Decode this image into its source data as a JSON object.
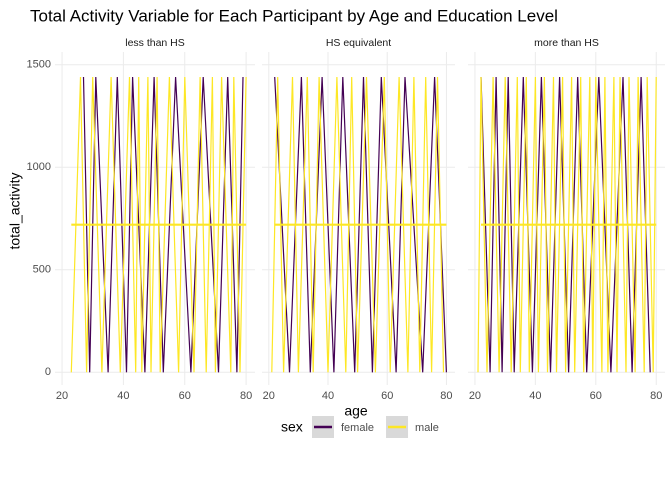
{
  "chart_data": {
    "type": "line",
    "title": "Total Activity Variable for Each Participant by Age and Education Level",
    "x_label": "age",
    "y_label": "total_activity",
    "legend_title": "sex",
    "legend_position": "bottom",
    "xlim": [
      17.7,
      82.9
    ],
    "ylim": [
      -62,
      1562
    ],
    "xticks": [
      20,
      40,
      60,
      80
    ],
    "yticks": [
      0,
      500,
      1000,
      1500
    ],
    "grid": true,
    "facets": [
      {
        "title": "less than HS",
        "series": [
          {
            "name": "female",
            "color": "#440154",
            "x": [
              27,
              29,
              31,
              35,
              38,
              41,
              43,
              47,
              50,
              53,
              57,
              62,
              66,
              71,
              74,
              77,
              79
            ],
            "values": [
              1440,
              0,
              1440,
              0,
              1440,
              0,
              1440,
              0,
              1440,
              0,
              1440,
              0,
              1440,
              0,
              1440,
              0,
              1440
            ]
          },
          {
            "name": "male",
            "color": "#FDE725",
            "x": [
              23,
              26,
              28,
              30,
              33,
              36,
              39,
              42,
              44,
              45,
              46,
              48,
              49,
              51,
              52,
              55,
              58,
              60,
              63,
              65,
              67,
              69,
              70,
              72,
              75,
              76,
              78,
              80
            ],
            "values": [
              0,
              1440,
              0,
              1440,
              0,
              1440,
              0,
              1440,
              0,
              1440,
              0,
              1440,
              0,
              1440,
              0,
              1440,
              0,
              1440,
              0,
              1440,
              0,
              1440,
              0,
              1440,
              0,
              1440,
              0,
              1440
            ]
          }
        ],
        "trend": {
          "color": "#FDE725",
          "x": [
            23,
            80
          ],
          "values": [
            720,
            720
          ]
        }
      },
      {
        "title": "HS equivalent",
        "series": [
          {
            "name": "female",
            "color": "#440154",
            "x": [
              22,
              27,
              31,
              34,
              38,
              42,
              45,
              49,
              52,
              55,
              58,
              63,
              66,
              72,
              76,
              80
            ],
            "values": [
              1440,
              0,
              1440,
              0,
              1440,
              0,
              1440,
              0,
              1440,
              0,
              1440,
              0,
              1440,
              0,
              1440,
              0
            ]
          },
          {
            "name": "male",
            "color": "#FDE725",
            "x": [
              21,
              23,
              25,
              28,
              30,
              33,
              35,
              37,
              40,
              43,
              46,
              48,
              50,
              53,
              56,
              59,
              61,
              64,
              67,
              69,
              71,
              73,
              75,
              77,
              79
            ],
            "values": [
              0,
              1440,
              0,
              1440,
              0,
              1440,
              0,
              1440,
              0,
              1440,
              0,
              1440,
              0,
              1440,
              0,
              1440,
              0,
              1440,
              0,
              1440,
              0,
              1440,
              0,
              1440,
              0
            ]
          }
        ],
        "trend": {
          "color": "#FDE725",
          "x": [
            22,
            80
          ],
          "values": [
            720,
            720
          ]
        }
      },
      {
        "title": "more than HS",
        "series": [
          {
            "name": "female",
            "color": "#440154",
            "x": [
              22,
              25,
              27,
              29,
              31,
              33,
              36,
              39,
              42,
              45,
              48,
              51,
              54,
              57,
              61,
              65,
              69,
              72,
              75,
              78
            ],
            "values": [
              1440,
              0,
              1440,
              0,
              1440,
              0,
              1440,
              0,
              1440,
              0,
              1440,
              0,
              1440,
              0,
              1440,
              0,
              1440,
              0,
              1440,
              0
            ]
          },
          {
            "name": "male",
            "color": "#FDE725",
            "x": [
              21,
              22,
              24,
              26,
              28,
              30,
              32,
              34,
              35,
              37,
              38,
              40,
              41,
              43,
              44,
              46,
              47,
              49,
              50,
              52,
              53,
              55,
              56,
              58,
              59,
              60,
              62,
              63,
              64,
              66,
              67,
              68,
              70,
              71,
              73,
              74,
              76,
              77,
              79,
              80
            ],
            "values": [
              0,
              1440,
              0,
              1440,
              0,
              1440,
              0,
              1440,
              0,
              1440,
              0,
              1440,
              0,
              1440,
              0,
              1440,
              0,
              1440,
              0,
              1440,
              0,
              1440,
              0,
              1440,
              0,
              1440,
              0,
              1440,
              0,
              1440,
              0,
              1440,
              0,
              1440,
              0,
              1440,
              0,
              1440,
              0,
              1440
            ]
          }
        ],
        "trend": {
          "color": "#FDE725",
          "x": [
            22,
            80
          ],
          "values": [
            720,
            720
          ]
        }
      }
    ]
  }
}
